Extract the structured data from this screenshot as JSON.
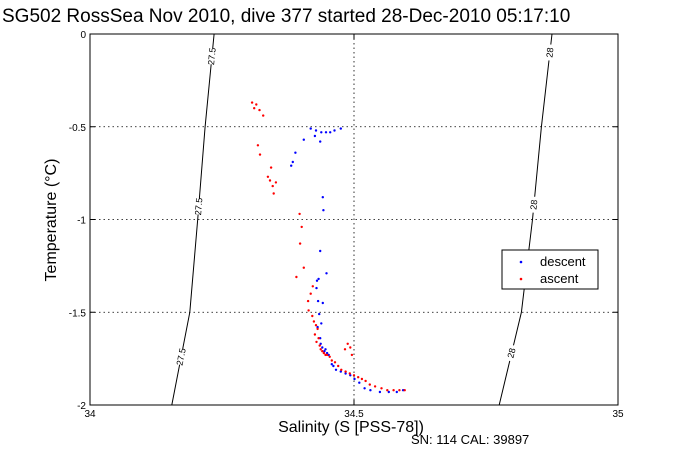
{
  "chart_data": {
    "type": "scatter",
    "title": "SG502 RossSea Nov 2010, dive 377 started 28-Dec-2010 05:17:10",
    "xlabel": "Salinity (S [PSS-78])",
    "ylabel": "Temperature (°C)",
    "xlim": [
      34,
      35
    ],
    "ylim": [
      -2,
      0
    ],
    "xticks": [
      "34",
      "34.5",
      "35"
    ],
    "yticks": [
      "0",
      "-0.5",
      "-1",
      "-1.5",
      "-2"
    ],
    "grid": true,
    "legend_position": "right",
    "footer": "SN: 114  CAL: 39897",
    "colors": {
      "descent": "#0000ff",
      "ascent": "#ff0000"
    },
    "isopycnals": [
      {
        "label": "27.5",
        "label_positions": [
          -0.12,
          -0.93,
          -1.74
        ],
        "points": [
          [
            34.235,
            0.0
          ],
          [
            34.218,
            -0.5
          ],
          [
            34.204,
            -1.0
          ],
          [
            34.189,
            -1.5
          ],
          [
            34.155,
            -2.0
          ]
        ]
      },
      {
        "label": "28",
        "label_positions": [
          -0.1,
          -0.92,
          -1.72
        ],
        "points": [
          [
            34.875,
            0.0
          ],
          [
            34.855,
            -0.5
          ],
          [
            34.838,
            -1.0
          ],
          [
            34.817,
            -1.5
          ],
          [
            34.775,
            -2.0
          ]
        ]
      }
    ],
    "series": [
      {
        "name": "descent",
        "color": "#0000ff",
        "x": [
          34.418,
          34.428,
          34.438,
          34.447,
          34.455,
          34.463,
          34.475,
          34.436,
          34.426,
          34.405,
          34.389,
          34.381,
          34.384,
          34.441,
          34.442,
          34.436,
          34.433,
          34.43,
          34.448,
          34.429,
          34.432,
          34.441,
          34.434,
          34.438,
          34.431,
          34.436,
          34.437,
          34.44,
          34.444,
          34.446,
          34.449,
          34.452,
          34.458,
          34.461,
          34.466,
          34.475,
          34.484,
          34.493,
          34.501,
          34.51,
          34.52,
          34.531,
          34.549,
          34.566,
          34.581,
          34.593
        ],
        "y": [
          -0.51,
          -0.52,
          -0.53,
          -0.53,
          -0.53,
          -0.52,
          -0.51,
          -0.58,
          -0.55,
          -0.57,
          -0.64,
          -0.71,
          -0.69,
          -0.88,
          -0.95,
          -1.17,
          -1.32,
          -1.33,
          -1.29,
          -1.37,
          -1.44,
          -1.45,
          -1.51,
          -1.56,
          -1.58,
          -1.64,
          -1.67,
          -1.69,
          -1.71,
          -1.7,
          -1.72,
          -1.73,
          -1.78,
          -1.79,
          -1.81,
          -1.82,
          -1.83,
          -1.84,
          -1.86,
          -1.88,
          -1.91,
          -1.92,
          -1.93,
          -1.93,
          -1.93,
          -1.92
        ]
      },
      {
        "name": "ascent",
        "color": "#ff0000",
        "x": [
          34.307,
          34.311,
          34.315,
          34.321,
          34.328,
          34.318,
          34.322,
          34.337,
          34.341,
          34.346,
          34.352,
          34.348,
          34.343,
          34.397,
          34.401,
          34.398,
          34.405,
          34.391,
          34.422,
          34.418,
          34.413,
          34.414,
          34.421,
          34.424,
          34.428,
          34.431,
          34.426,
          34.433,
          34.429,
          34.435,
          34.437,
          34.44,
          34.443,
          34.446,
          34.449,
          34.454,
          34.458,
          34.464,
          34.47,
          34.476,
          34.484,
          34.492,
          34.5,
          34.508,
          34.515,
          34.522,
          34.53,
          34.54,
          34.552,
          34.563,
          34.575,
          34.586,
          34.596,
          34.483,
          34.488,
          34.493,
          34.496
        ],
        "y": [
          -0.37,
          -0.4,
          -0.38,
          -0.41,
          -0.44,
          -0.6,
          -0.65,
          -0.77,
          -0.79,
          -0.82,
          -0.8,
          -0.86,
          -0.72,
          -0.97,
          -1.04,
          -1.13,
          -1.26,
          -1.31,
          -1.36,
          -1.4,
          -1.44,
          -1.49,
          -1.52,
          -1.55,
          -1.57,
          -1.59,
          -1.62,
          -1.64,
          -1.66,
          -1.68,
          -1.7,
          -1.71,
          -1.72,
          -1.73,
          -1.73,
          -1.74,
          -1.76,
          -1.77,
          -1.79,
          -1.81,
          -1.82,
          -1.83,
          -1.84,
          -1.85,
          -1.86,
          -1.87,
          -1.89,
          -1.9,
          -1.91,
          -1.92,
          -1.92,
          -1.92,
          -1.92,
          -1.7,
          -1.67,
          -1.69,
          -1.73
        ]
      }
    ]
  }
}
